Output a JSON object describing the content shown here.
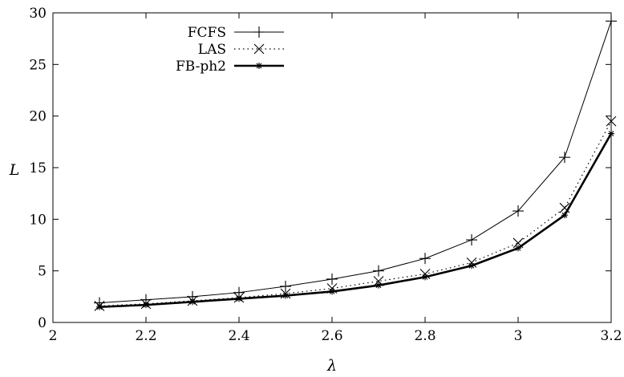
{
  "chart_data": {
    "type": "line",
    "xlabel": "λ",
    "ylabel": "L",
    "xlim": [
      2,
      3.2
    ],
    "ylim": [
      0,
      30
    ],
    "xticks": [
      "2",
      "2.2",
      "2.4",
      "2.6",
      "2.8",
      "3",
      "3.2"
    ],
    "yticks": [
      "0",
      "5",
      "10",
      "15",
      "20",
      "25",
      "30"
    ],
    "grid": false,
    "legend_position": "top-left",
    "x": [
      2.1,
      2.2,
      2.3,
      2.4,
      2.5,
      2.6,
      2.7,
      2.8,
      2.9,
      3.0,
      3.1,
      3.2
    ],
    "series": [
      {
        "name": "FCFS",
        "marker": "plus",
        "line": "solid-thin",
        "values": [
          1.9,
          2.2,
          2.5,
          2.9,
          3.5,
          4.2,
          5.0,
          6.2,
          8.0,
          10.8,
          16.0,
          29.2
        ]
      },
      {
        "name": "LAS",
        "marker": "cross",
        "line": "dotted",
        "values": [
          1.6,
          1.8,
          2.1,
          2.4,
          2.8,
          3.3,
          4.0,
          4.7,
          5.8,
          7.7,
          11.1,
          19.5
        ]
      },
      {
        "name": "FB-ph2",
        "marker": "star",
        "line": "solid-thick",
        "values": [
          1.5,
          1.7,
          2.0,
          2.3,
          2.6,
          3.0,
          3.6,
          4.4,
          5.5,
          7.2,
          10.4,
          18.3
        ]
      }
    ]
  }
}
